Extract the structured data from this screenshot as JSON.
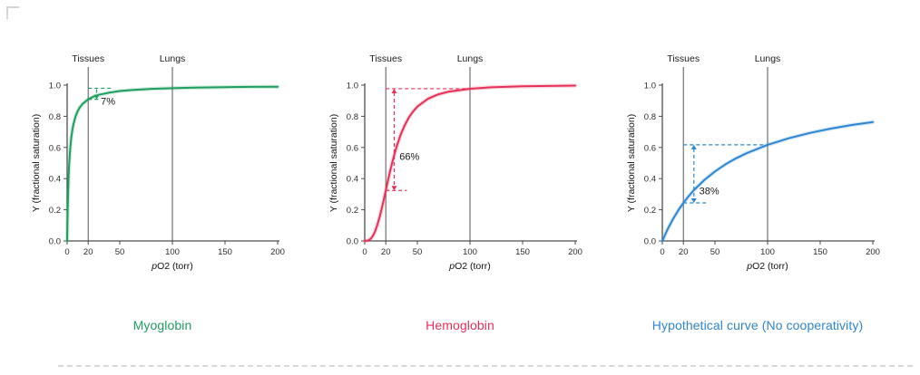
{
  "figure": {
    "background": "#ffffff",
    "bottom_rule_color": "#d8d8d8"
  },
  "axes": {
    "xlabel_italic": "p",
    "xlabel_rest": "O2 (torr)",
    "ylabel": "Y (fractional saturation)",
    "x_ticks": [
      0,
      20,
      50,
      100,
      150,
      200
    ],
    "y_ticks": [
      "0.0",
      "0.2",
      "0.4",
      "0.6",
      "0.8",
      "1.0"
    ],
    "xlim": [
      0,
      200
    ],
    "ylim": [
      0,
      1
    ],
    "tissues_label": "Tissues",
    "lungs_label": "Lungs",
    "tissues_x": 20,
    "lungs_x": 100,
    "axis_color": "#4d4d4d",
    "refline_color": "#555555",
    "tick_text_color": "#2d2d2d",
    "label_text_color": "#111111"
  },
  "chart_data": [
    {
      "type": "line",
      "name": "Myoglobin",
      "caption": "Myoglobin",
      "color": "#1f9d5e",
      "x": [
        0,
        0.5,
        1,
        1.5,
        2,
        3,
        4,
        5,
        6,
        8,
        10,
        12,
        15,
        20,
        25,
        30,
        40,
        50,
        60,
        80,
        100,
        120,
        150,
        175,
        200
      ],
      "y": [
        0,
        0.2,
        0.333,
        0.429,
        0.5,
        0.6,
        0.667,
        0.714,
        0.75,
        0.8,
        0.833,
        0.857,
        0.882,
        0.909,
        0.926,
        0.938,
        0.952,
        0.962,
        0.968,
        0.976,
        0.98,
        0.984,
        0.987,
        0.989,
        0.99
      ],
      "saturation_at_tissues": 0.91,
      "saturation_at_lungs": 0.98,
      "annotation": {
        "label": "7%",
        "arrow_x": 28,
        "y_top": 0.98,
        "y_bottom": 0.909,
        "heads": "down",
        "dash_top": {
          "y": 0.98,
          "x1": 20,
          "x2": 42
        },
        "dash_bottom": {
          "y": 0.909,
          "x1": 20,
          "x2": 30
        },
        "label_x": 32,
        "label_y": 0.875
      }
    },
    {
      "type": "line",
      "name": "Hemoglobin",
      "caption": "Hemoglobin",
      "color": "#e73058",
      "x": [
        0,
        2,
        4,
        6,
        8,
        10,
        12,
        14,
        16,
        18,
        20,
        22,
        24,
        26,
        28,
        30,
        34,
        38,
        42,
        46,
        50,
        60,
        70,
        80,
        100,
        120,
        150,
        200
      ],
      "y": [
        0,
        0.001,
        0.005,
        0.016,
        0.036,
        0.064,
        0.103,
        0.15,
        0.204,
        0.263,
        0.324,
        0.385,
        0.444,
        0.5,
        0.552,
        0.599,
        0.679,
        0.743,
        0.793,
        0.832,
        0.862,
        0.912,
        0.941,
        0.959,
        0.977,
        0.986,
        0.993,
        0.997
      ],
      "saturation_at_tissues": 0.32,
      "saturation_at_lungs": 0.98,
      "annotation": {
        "label": "66%",
        "arrow_x": 28,
        "y_top": 0.977,
        "y_bottom": 0.324,
        "heads": "both",
        "dash_top": {
          "y": 0.977,
          "x1": 20,
          "x2": 97
        },
        "dash_bottom": {
          "y": 0.324,
          "x1": 20,
          "x2": 40
        },
        "label_x": 33,
        "label_y": 0.52
      }
    },
    {
      "type": "line",
      "name": "Hypothetical curve (No cooperativity)",
      "caption": "Hypothetical curve (No cooperativity)",
      "color": "#2e86d1",
      "x": [
        0,
        5,
        10,
        15,
        20,
        25,
        30,
        40,
        50,
        60,
        70,
        80,
        100,
        120,
        140,
        160,
        180,
        200
      ],
      "y": [
        0,
        0.075,
        0.139,
        0.195,
        0.244,
        0.287,
        0.326,
        0.392,
        0.446,
        0.492,
        0.53,
        0.563,
        0.617,
        0.659,
        0.693,
        0.721,
        0.744,
        0.763
      ],
      "saturation_at_tissues": 0.24,
      "saturation_at_lungs": 0.62,
      "annotation": {
        "label": "38%",
        "arrow_x": 30,
        "y_top": 0.617,
        "y_bottom": 0.244,
        "heads": "both",
        "dash_top": {
          "y": 0.617,
          "x1": 20,
          "x2": 100
        },
        "dash_bottom": {
          "y": 0.244,
          "x1": 20,
          "x2": 44
        },
        "label_x": 35,
        "label_y": 0.3
      }
    }
  ]
}
